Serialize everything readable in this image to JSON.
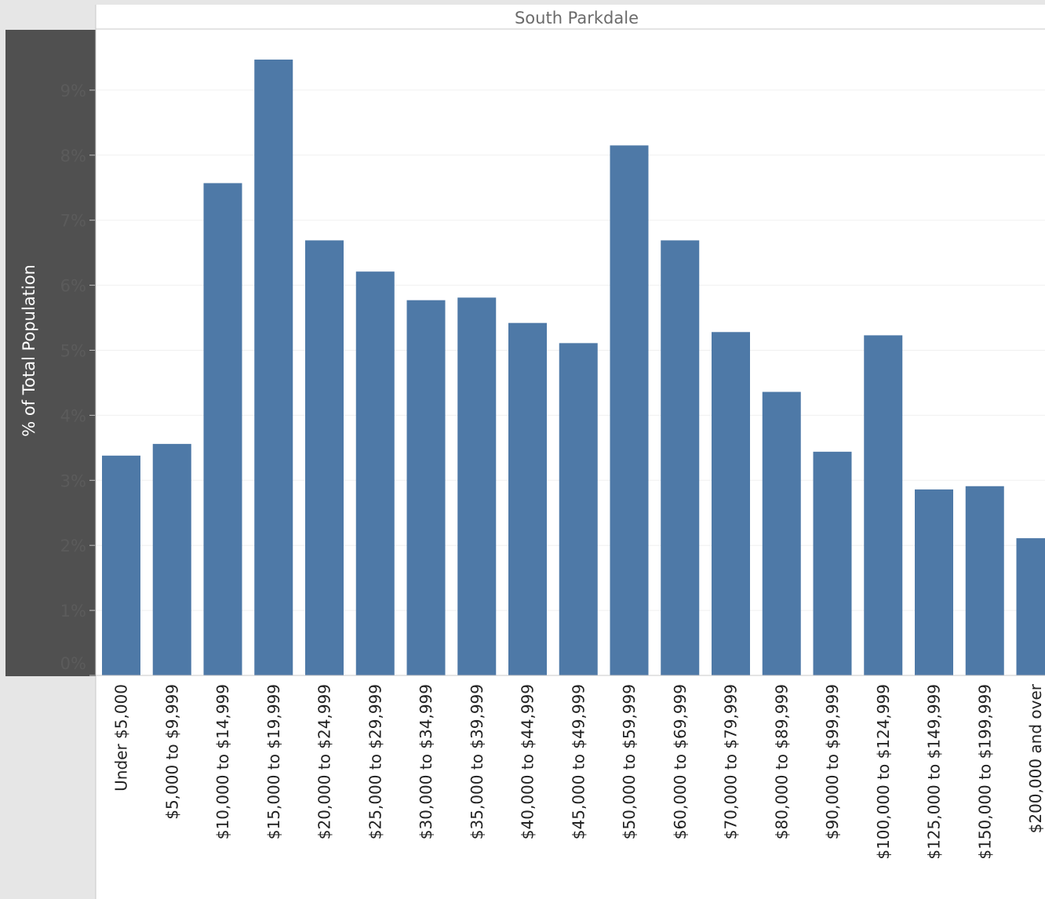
{
  "chart_data": {
    "type": "bar",
    "title": "South Parkdale",
    "ylabel": "% of Total Population",
    "xlabel": "",
    "ylim": [
      0,
      0.098
    ],
    "yticks": [
      0,
      0.01,
      0.02,
      0.03,
      0.04,
      0.05,
      0.06,
      0.07,
      0.08,
      0.09
    ],
    "ytick_labels": [
      "0%",
      "1%",
      "2%",
      "3%",
      "4%",
      "5%",
      "6%",
      "7%",
      "8%",
      "9%"
    ],
    "grid": true,
    "bar_color": "#4e79a7",
    "categories": [
      "Under $5,000",
      "$5,000 to $9,999",
      "$10,000 to $14,999",
      "$15,000 to $19,999",
      "$20,000 to $24,999",
      "$25,000 to $29,999",
      "$30,000 to $34,999",
      "$35,000 to $39,999",
      "$40,000 to $44,999",
      "$45,000 to $49,999",
      "$50,000 to $59,999",
      "$60,000 to $69,999",
      "$70,000 to $79,999",
      "$80,000 to $89,999",
      "$90,000 to $99,999",
      "$100,000 to $124,999",
      "$125,000 to $149,999",
      "$150,000 to $199,999",
      "$200,000 and over"
    ],
    "values": [
      0.0338,
      0.0356,
      0.0757,
      0.0947,
      0.0669,
      0.0621,
      0.0577,
      0.0581,
      0.0542,
      0.0511,
      0.0815,
      0.0669,
      0.0528,
      0.0436,
      0.0344,
      0.0523,
      0.0286,
      0.0291,
      0.0211
    ]
  }
}
